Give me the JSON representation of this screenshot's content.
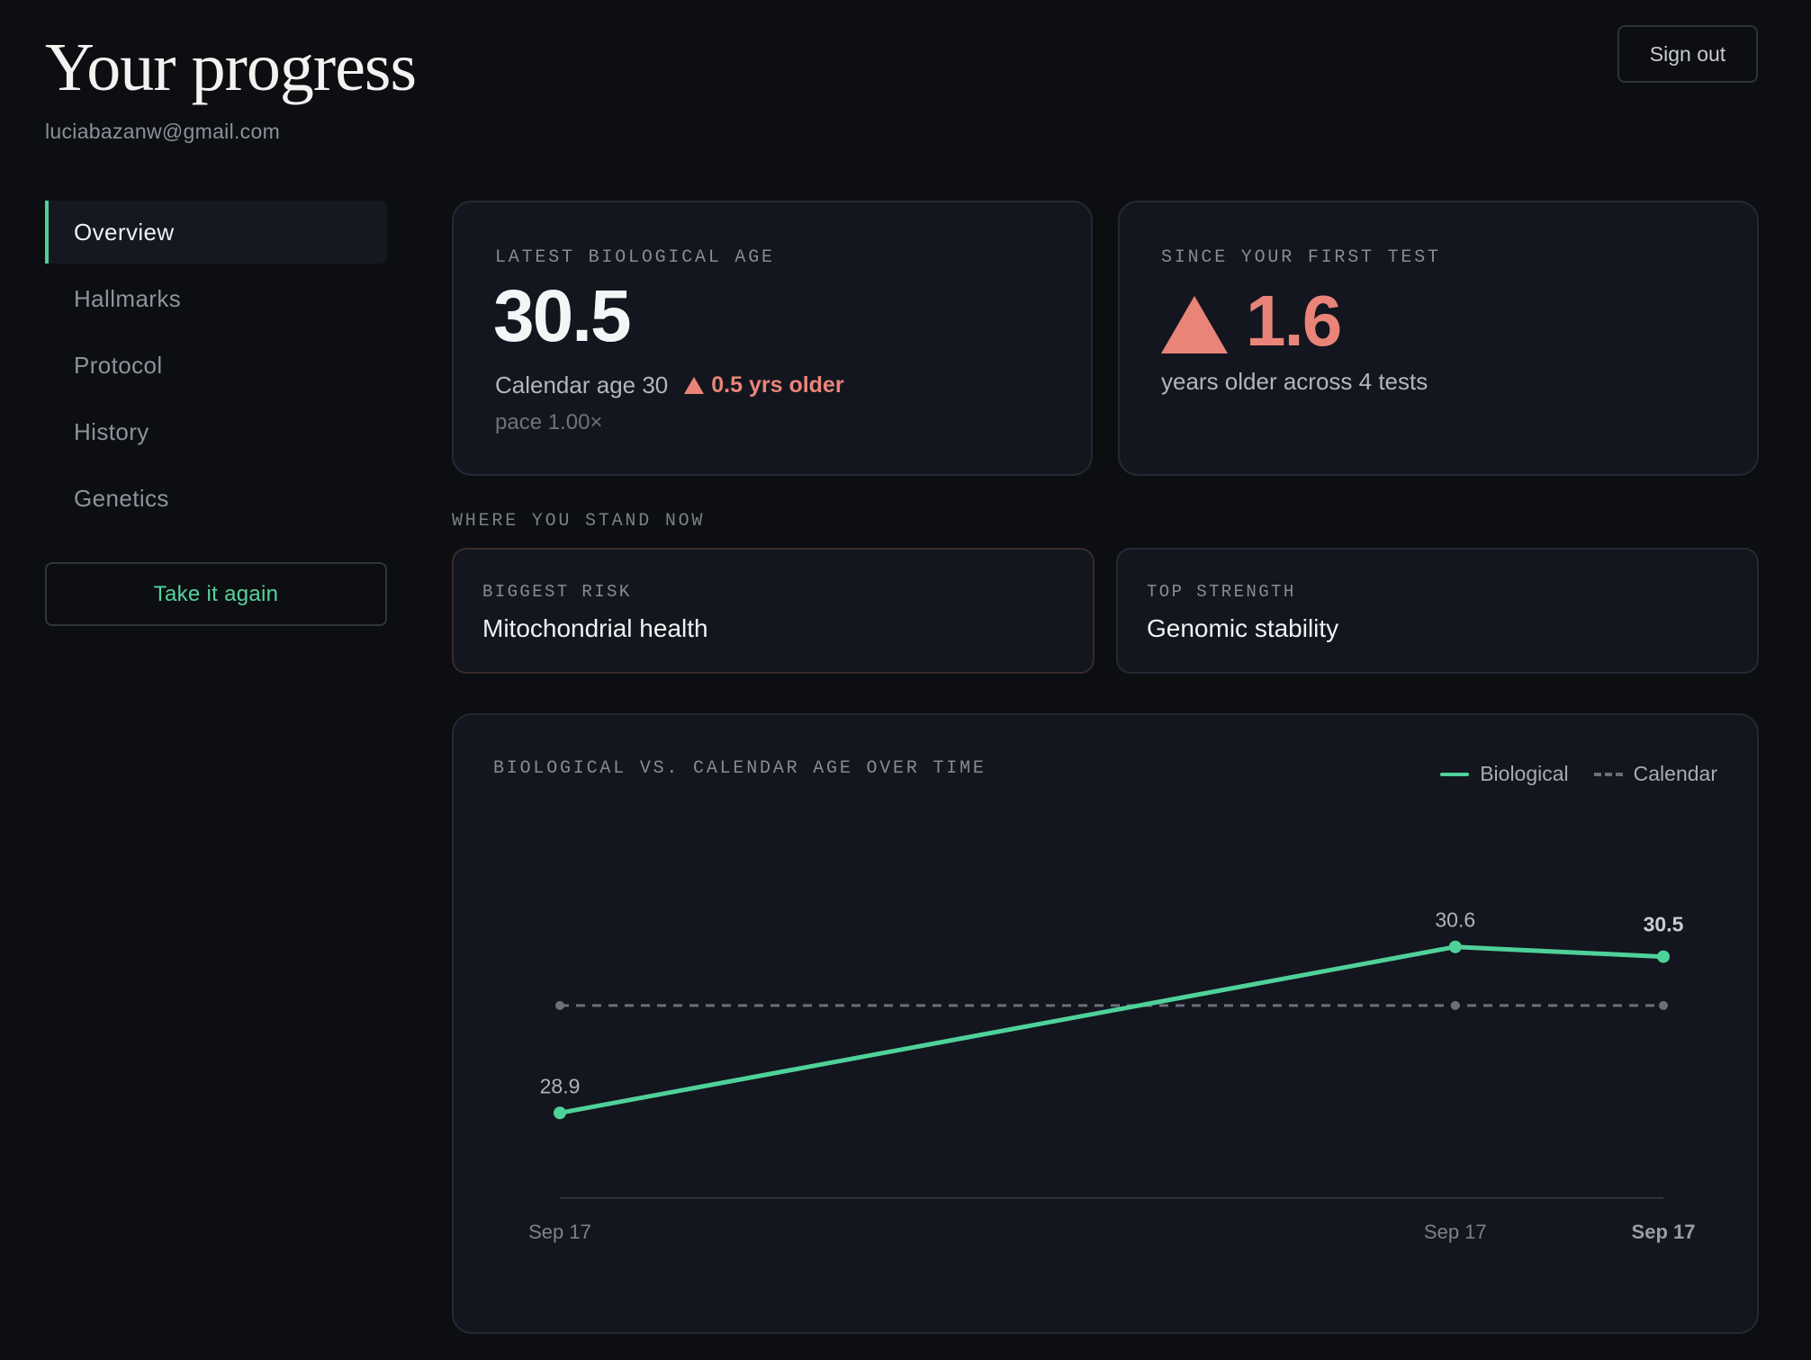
{
  "header": {
    "title": "Your progress",
    "email": "luciabazanw@gmail.com",
    "sign_out": "Sign out"
  },
  "sidebar": {
    "items": [
      {
        "label": "Overview",
        "active": true
      },
      {
        "label": "Hallmarks",
        "active": false
      },
      {
        "label": "Protocol",
        "active": false
      },
      {
        "label": "History",
        "active": false
      },
      {
        "label": "Genetics",
        "active": false
      }
    ],
    "retake": "Take it again"
  },
  "bio_age": {
    "label": "LATEST BIOLOGICAL AGE",
    "value": "30.5",
    "calendar": "Calendar age 30",
    "delta": "0.5 yrs older",
    "pace": "pace 1.00×"
  },
  "since_first": {
    "label": "SINCE YOUR FIRST TEST",
    "value": "1.6",
    "note": "years older across 4 tests"
  },
  "stand": {
    "section_label": "WHERE YOU STAND NOW",
    "risk_label": "BIGGEST RISK",
    "risk_value": "Mitochondrial health",
    "strength_label": "TOP STRENGTH",
    "strength_value": "Genomic stability"
  },
  "colors": {
    "accent": "#4fd19a",
    "warn": "#ea8478",
    "muted": "#6b6f78"
  },
  "chart_data": {
    "type": "line",
    "title": "BIOLOGICAL VS. CALENDAR AGE OVER TIME",
    "legend_position": "top-right",
    "x": [
      "Sep 17",
      "Sep 17",
      "Sep 17"
    ],
    "x_positions": [
      0,
      0.8114,
      1
    ],
    "series": [
      {
        "name": "Biological",
        "values": [
          28.9,
          30.6,
          30.5
        ],
        "labels": [
          "28.9",
          "30.6",
          "30.5"
        ],
        "style": "solid"
      },
      {
        "name": "Calendar",
        "values": [
          30,
          30,
          30
        ],
        "style": "dashed"
      }
    ],
    "ylim": [
      28.0,
      31.5
    ]
  }
}
